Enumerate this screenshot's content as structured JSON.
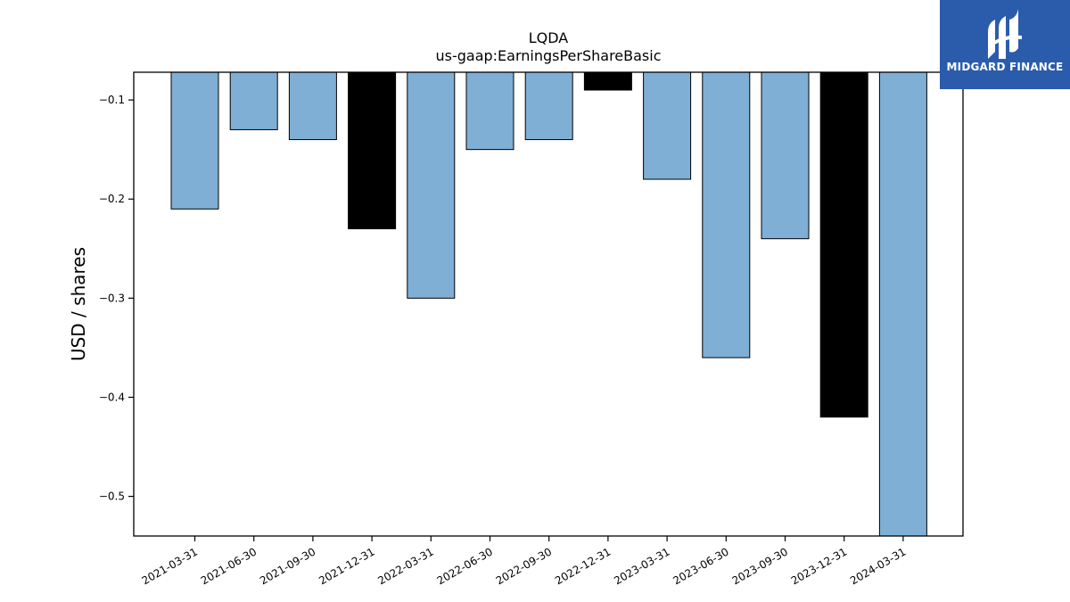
{
  "chart_data": {
    "type": "bar",
    "title": "LQDA",
    "subtitle": "us-gaap:EarningsPerShareBasic",
    "xlabel": "",
    "ylabel": "USD / shares",
    "categories": [
      "2021-03-31",
      "2021-06-30",
      "2021-09-30",
      "2021-12-31",
      "2022-03-31",
      "2022-06-30",
      "2022-09-30",
      "2022-12-31",
      "2023-03-31",
      "2023-06-30",
      "2023-09-30",
      "2023-12-31",
      "2024-03-31"
    ],
    "values": [
      -0.21,
      -0.13,
      -0.14,
      -0.23,
      -0.3,
      -0.15,
      -0.14,
      -0.09,
      -0.18,
      -0.36,
      -0.24,
      -0.42,
      -0.54
    ],
    "bar_colors": [
      "#7fafd4",
      "#7fafd4",
      "#7fafd4",
      "#000000",
      "#7fafd4",
      "#7fafd4",
      "#7fafd4",
      "#000000",
      "#7fafd4",
      "#7fafd4",
      "#7fafd4",
      "#000000",
      "#7fafd4"
    ],
    "ylim": [
      -0.54,
      -0.072
    ],
    "yticks": [
      -0.1,
      -0.2,
      -0.3,
      -0.4,
      -0.5
    ],
    "ytick_labels": [
      "−0.1",
      "−0.2",
      "−0.3",
      "−0.4",
      "−0.5"
    ],
    "grid": false,
    "legend": "none"
  },
  "logo": {
    "text": "MIDGARD FINANCE",
    "background": "#2b5cab",
    "icon": "midgard-logo-icon"
  }
}
